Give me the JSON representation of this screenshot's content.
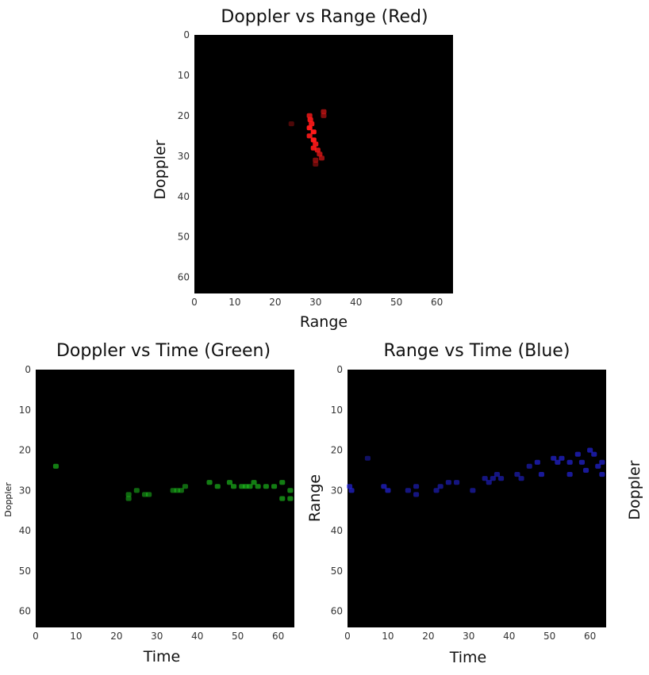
{
  "chart_data": [
    {
      "type": "heatmap",
      "title": "Doppler vs Range (Red)",
      "xlabel": "Range",
      "ylabel": "Doppler",
      "xlim": [
        0,
        64
      ],
      "ylim": [
        64,
        0
      ],
      "xticks": [
        "0",
        "10",
        "20",
        "30",
        "40",
        "50",
        "60"
      ],
      "yticks": [
        "0",
        "10",
        "20",
        "30",
        "40",
        "50",
        "60"
      ],
      "color": "#ff1a1a",
      "background": "#000000",
      "points": [
        {
          "x": 28.5,
          "y": 20,
          "v": 0.8
        },
        {
          "x": 28.7,
          "y": 21,
          "v": 0.9
        },
        {
          "x": 29,
          "y": 22,
          "v": 0.9
        },
        {
          "x": 28.5,
          "y": 23,
          "v": 1.0
        },
        {
          "x": 29.5,
          "y": 24,
          "v": 1.0
        },
        {
          "x": 28.5,
          "y": 25,
          "v": 0.9
        },
        {
          "x": 29.5,
          "y": 26,
          "v": 1.0
        },
        {
          "x": 30,
          "y": 27,
          "v": 0.9
        },
        {
          "x": 29.5,
          "y": 28,
          "v": 0.9
        },
        {
          "x": 30.5,
          "y": 28.5,
          "v": 0.8
        },
        {
          "x": 31,
          "y": 29.5,
          "v": 0.7
        },
        {
          "x": 31.5,
          "y": 30.5,
          "v": 0.6
        },
        {
          "x": 30,
          "y": 31,
          "v": 0.5
        },
        {
          "x": 30,
          "y": 32,
          "v": 0.4
        },
        {
          "x": 32,
          "y": 19,
          "v": 0.6
        },
        {
          "x": 32,
          "y": 20,
          "v": 0.5
        },
        {
          "x": 24,
          "y": 22,
          "v": 0.3
        }
      ]
    },
    {
      "type": "heatmap",
      "title": "Doppler vs Time (Green)",
      "xlabel": "Time",
      "ylabel": "Doppler",
      "xlim": [
        0,
        64
      ],
      "ylim": [
        64,
        0
      ],
      "xticks": [
        "0",
        "10",
        "20",
        "30",
        "40",
        "50",
        "60"
      ],
      "yticks": [
        "0",
        "10",
        "20",
        "30",
        "40",
        "50",
        "60"
      ],
      "color": "#1fd11f",
      "background": "#000000",
      "points": [
        {
          "x": 5,
          "y": 24,
          "v": 0.6
        },
        {
          "x": 23,
          "y": 31,
          "v": 0.5
        },
        {
          "x": 23,
          "y": 32,
          "v": 0.5
        },
        {
          "x": 25,
          "y": 30,
          "v": 0.5
        },
        {
          "x": 27,
          "y": 31,
          "v": 0.5
        },
        {
          "x": 28,
          "y": 31,
          "v": 0.5
        },
        {
          "x": 34,
          "y": 30,
          "v": 0.5
        },
        {
          "x": 35,
          "y": 30,
          "v": 0.5
        },
        {
          "x": 36,
          "y": 30,
          "v": 0.5
        },
        {
          "x": 37,
          "y": 29,
          "v": 0.5
        },
        {
          "x": 43,
          "y": 28,
          "v": 0.6
        },
        {
          "x": 45,
          "y": 29,
          "v": 0.6
        },
        {
          "x": 48,
          "y": 28,
          "v": 0.6
        },
        {
          "x": 49,
          "y": 29,
          "v": 0.6
        },
        {
          "x": 51,
          "y": 29,
          "v": 0.6
        },
        {
          "x": 52,
          "y": 29,
          "v": 0.6
        },
        {
          "x": 53,
          "y": 29,
          "v": 0.6
        },
        {
          "x": 54,
          "y": 28,
          "v": 0.6
        },
        {
          "x": 55,
          "y": 29,
          "v": 0.6
        },
        {
          "x": 57,
          "y": 29,
          "v": 0.6
        },
        {
          "x": 59,
          "y": 29,
          "v": 0.6
        },
        {
          "x": 61,
          "y": 28,
          "v": 0.6
        },
        {
          "x": 61,
          "y": 32,
          "v": 0.6
        },
        {
          "x": 63,
          "y": 30,
          "v": 0.6
        },
        {
          "x": 63,
          "y": 32,
          "v": 0.6
        }
      ]
    },
    {
      "type": "heatmap",
      "title": "Range vs Time (Blue)",
      "xlabel": "Time",
      "ylabel": "Range",
      "xlim": [
        0,
        64
      ],
      "ylim": [
        64,
        0
      ],
      "xticks": [
        "0",
        "10",
        "20",
        "30",
        "40",
        "50",
        "60"
      ],
      "yticks": [
        "0",
        "10",
        "20",
        "30",
        "40",
        "50",
        "60"
      ],
      "color": "#2a2aff",
      "background": "#000000",
      "points": [
        {
          "x": 0.5,
          "y": 29,
          "v": 0.6
        },
        {
          "x": 1,
          "y": 30,
          "v": 0.6
        },
        {
          "x": 5,
          "y": 22,
          "v": 0.4
        },
        {
          "x": 9,
          "y": 29,
          "v": 0.6
        },
        {
          "x": 10,
          "y": 30,
          "v": 0.6
        },
        {
          "x": 15,
          "y": 30,
          "v": 0.5
        },
        {
          "x": 17,
          "y": 29,
          "v": 0.5
        },
        {
          "x": 17,
          "y": 31,
          "v": 0.5
        },
        {
          "x": 22,
          "y": 30,
          "v": 0.5
        },
        {
          "x": 23,
          "y": 29,
          "v": 0.5
        },
        {
          "x": 25,
          "y": 28,
          "v": 0.5
        },
        {
          "x": 27,
          "y": 28,
          "v": 0.5
        },
        {
          "x": 31,
          "y": 30,
          "v": 0.5
        },
        {
          "x": 34,
          "y": 27,
          "v": 0.5
        },
        {
          "x": 35,
          "y": 28,
          "v": 0.5
        },
        {
          "x": 36,
          "y": 27,
          "v": 0.5
        },
        {
          "x": 37,
          "y": 26,
          "v": 0.5
        },
        {
          "x": 38,
          "y": 27,
          "v": 0.5
        },
        {
          "x": 42,
          "y": 26,
          "v": 0.5
        },
        {
          "x": 43,
          "y": 27,
          "v": 0.5
        },
        {
          "x": 45,
          "y": 24,
          "v": 0.5
        },
        {
          "x": 47,
          "y": 23,
          "v": 0.6
        },
        {
          "x": 48,
          "y": 26,
          "v": 0.6
        },
        {
          "x": 51,
          "y": 22,
          "v": 0.6
        },
        {
          "x": 52,
          "y": 23,
          "v": 0.6
        },
        {
          "x": 53,
          "y": 22,
          "v": 0.6
        },
        {
          "x": 55,
          "y": 23,
          "v": 0.6
        },
        {
          "x": 55,
          "y": 26,
          "v": 0.6
        },
        {
          "x": 57,
          "y": 21,
          "v": 0.6
        },
        {
          "x": 58,
          "y": 23,
          "v": 0.6
        },
        {
          "x": 59,
          "y": 25,
          "v": 0.6
        },
        {
          "x": 60,
          "y": 20,
          "v": 0.6
        },
        {
          "x": 61,
          "y": 21,
          "v": 0.6
        },
        {
          "x": 62,
          "y": 24,
          "v": 0.6
        },
        {
          "x": 63,
          "y": 23,
          "v": 0.6
        },
        {
          "x": 63,
          "y": 26,
          "v": 0.6
        }
      ]
    }
  ],
  "extra_label": "Doppler"
}
